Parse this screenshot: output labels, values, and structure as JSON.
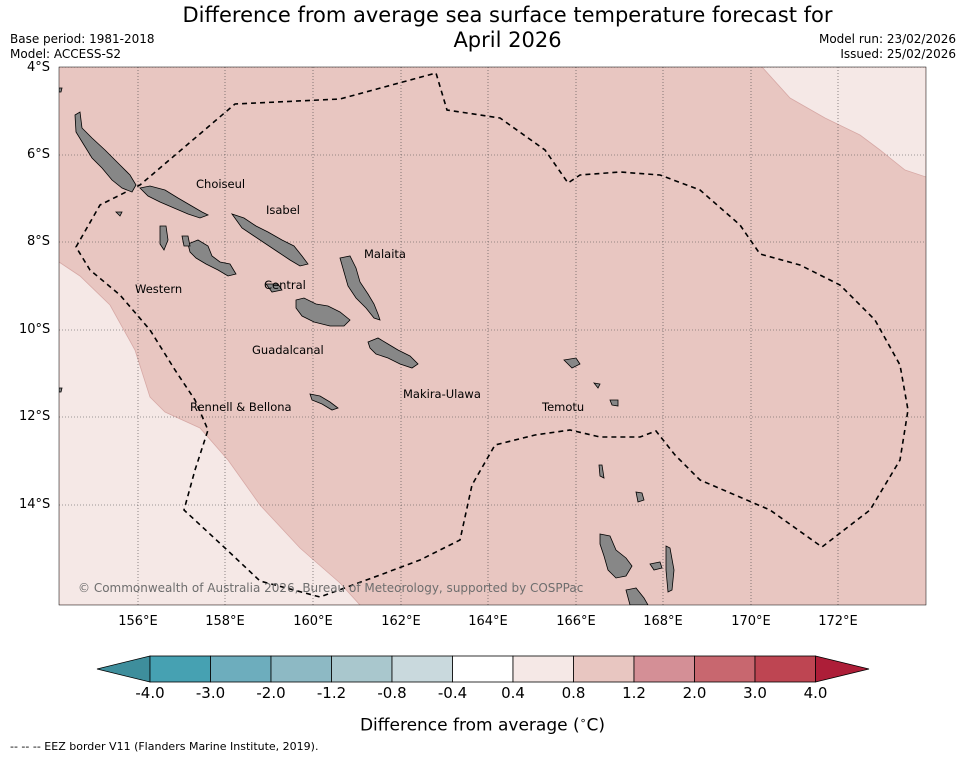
{
  "header": {
    "title_line1": "Difference from average sea surface temperature forecast for",
    "title_line2": "April 2026",
    "base_period": "Base period: 1981-2018",
    "model": "Model: ACCESS-S2",
    "model_run": "Model run: 23/02/2026",
    "issued": "Issued: 25/02/2026"
  },
  "map": {
    "lat_labels": [
      "4°S",
      "6°S",
      "8°S",
      "10°S",
      "12°S",
      "14°S"
    ],
    "lon_labels": [
      "156°E",
      "158°E",
      "160°E",
      "162°E",
      "164°E",
      "166°E",
      "168°E",
      "170°E",
      "172°E"
    ],
    "provinces": [
      "Choiseul",
      "Isabel",
      "Malaita",
      "Western",
      "Central",
      "Guadalcanal",
      "Makira-Ulawa",
      "Rennell & Bellona",
      "Temotu"
    ],
    "copyright": "© Commonwealth of Australia 2026, Bureau of Meteorology, supported by COSPPac",
    "anomaly_fill_main": "#e8c6c1",
    "anomaly_fill_low": "#f5e8e6",
    "land_color": "#878787"
  },
  "colorbar": {
    "labels": [
      "-4.0",
      "-3.0",
      "-2.0",
      "-1.2",
      "-0.8",
      "-0.4",
      "0.4",
      "0.8",
      "1.2",
      "2.0",
      "3.0",
      "4.0"
    ],
    "colors": [
      "#3e8e9c",
      "#46a1b2",
      "#6dadbd",
      "#8db9c4",
      "#a9c7cd",
      "#c9d9dd",
      "#ffffff",
      "#f5e8e6",
      "#e8c6c1",
      "#d48f96",
      "#c8676f",
      "#be4552",
      "#ad1e38"
    ],
    "title": "Difference from average (",
    "title_unit": "C)"
  },
  "footnote": "-- -- -- EEZ border V11 (Flanders Marine Institute, 2019)."
}
